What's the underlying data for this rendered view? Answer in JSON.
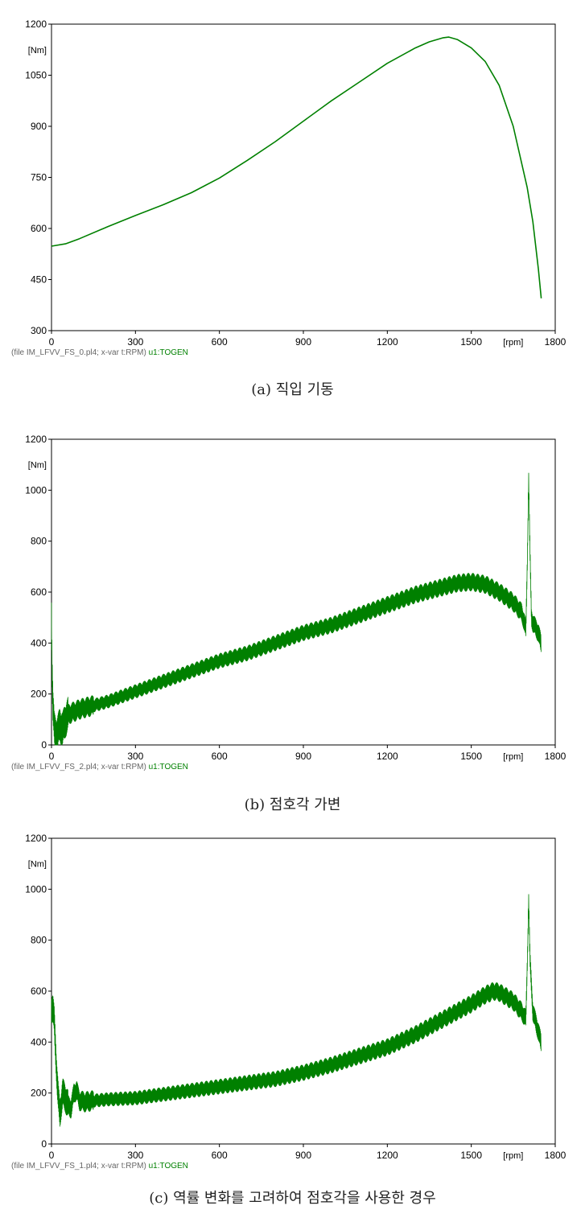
{
  "chart_data": [
    {
      "type": "line",
      "caption": "(a) 직입 기동",
      "ylabel": "[Nm]",
      "xlabel": "[rpm]",
      "xlim": [
        0,
        1800
      ],
      "ylim": [
        300,
        1200
      ],
      "x_ticks": [
        0,
        300,
        600,
        900,
        1200,
        1500,
        1800
      ],
      "y_ticks": [
        300,
        450,
        600,
        750,
        900,
        1050,
        1200
      ],
      "footer_file": "(file IM_LFVV_FS_0.pl4; x-var t:RPM)",
      "footer_var": "u1:TOGEN",
      "line_color": "#008000",
      "grid": false,
      "series": [
        {
          "name": "u1:TOGEN",
          "x": [
            0,
            50,
            100,
            200,
            300,
            400,
            500,
            600,
            700,
            800,
            900,
            1000,
            1100,
            1200,
            1300,
            1350,
            1400,
            1420,
            1450,
            1500,
            1550,
            1600,
            1650,
            1700,
            1720,
            1740,
            1750
          ],
          "y": [
            548,
            555,
            570,
            605,
            638,
            670,
            705,
            748,
            800,
            855,
            915,
            975,
            1030,
            1085,
            1130,
            1148,
            1160,
            1162,
            1155,
            1130,
            1090,
            1020,
            900,
            720,
            620,
            480,
            395
          ],
          "noise": 0
        }
      ]
    },
    {
      "type": "line",
      "caption": "(b) 점호각 가변",
      "ylabel": "[Nm]",
      "xlabel": "[rpm]",
      "xlim": [
        0,
        1800
      ],
      "ylim": [
        0,
        1200
      ],
      "x_ticks": [
        0,
        300,
        600,
        900,
        1200,
        1500,
        1800
      ],
      "y_ticks": [
        0,
        200,
        400,
        600,
        800,
        1000,
        1200
      ],
      "footer_file": "(file IM_LFVV_FS_2.pl4; x-var t:RPM)",
      "footer_var": "u1:TOGEN",
      "line_color": "#008000",
      "grid": false,
      "series": [
        {
          "name": "u1:TOGEN",
          "x": [
            0,
            2,
            5,
            10,
            20,
            30,
            40,
            50,
            60,
            80,
            100,
            150,
            200,
            300,
            400,
            500,
            600,
            700,
            800,
            900,
            1000,
            1100,
            1200,
            1300,
            1400,
            1450,
            1500,
            1550,
            1600,
            1650,
            1680,
            1690,
            1695,
            1700,
            1705,
            1710,
            1715,
            1720,
            1740,
            1750
          ],
          "y": [
            520,
            300,
            150,
            60,
            40,
            80,
            60,
            100,
            120,
            130,
            140,
            155,
            170,
            210,
            250,
            290,
            330,
            360,
            400,
            440,
            470,
            510,
            550,
            590,
            620,
            635,
            640,
            630,
            600,
            560,
            520,
            480,
            450,
            700,
            1050,
            750,
            500,
            480,
            440,
            395
          ],
          "noise": 0.6
        }
      ]
    },
    {
      "type": "line",
      "caption": "(c) 역률 변화를 고려하여 점호각을 사용한 경우",
      "ylabel": "[Nm]",
      "xlabel": "[rpm]",
      "xlim": [
        0,
        1800
      ],
      "ylim": [
        0,
        1200
      ],
      "x_ticks": [
        0,
        300,
        600,
        900,
        1200,
        1500,
        1800
      ],
      "y_ticks": [
        0,
        200,
        400,
        600,
        800,
        1000,
        1200
      ],
      "footer_file": "(file IM_LFVV_FS_1.pl4; x-var t:RPM)",
      "footer_var": "u1:TOGEN",
      "line_color": "#008000",
      "grid": false,
      "series": [
        {
          "name": "u1:TOGEN",
          "x": [
            0,
            5,
            10,
            15,
            20,
            25,
            30,
            40,
            50,
            60,
            70,
            80,
            90,
            100,
            120,
            150,
            200,
            300,
            400,
            500,
            600,
            700,
            800,
            900,
            1000,
            1100,
            1200,
            1300,
            1400,
            1500,
            1550,
            1580,
            1600,
            1650,
            1680,
            1690,
            1695,
            1700,
            1705,
            1710,
            1720,
            1740,
            1750
          ],
          "y": [
            535,
            530,
            480,
            360,
            250,
            170,
            120,
            200,
            180,
            150,
            140,
            200,
            210,
            170,
            165,
            170,
            175,
            180,
            195,
            210,
            225,
            240,
            255,
            280,
            310,
            345,
            380,
            430,
            490,
            550,
            585,
            600,
            595,
            560,
            520,
            500,
            490,
            700,
            960,
            720,
            520,
            440,
            395
          ],
          "noise": 0.5
        }
      ]
    }
  ]
}
